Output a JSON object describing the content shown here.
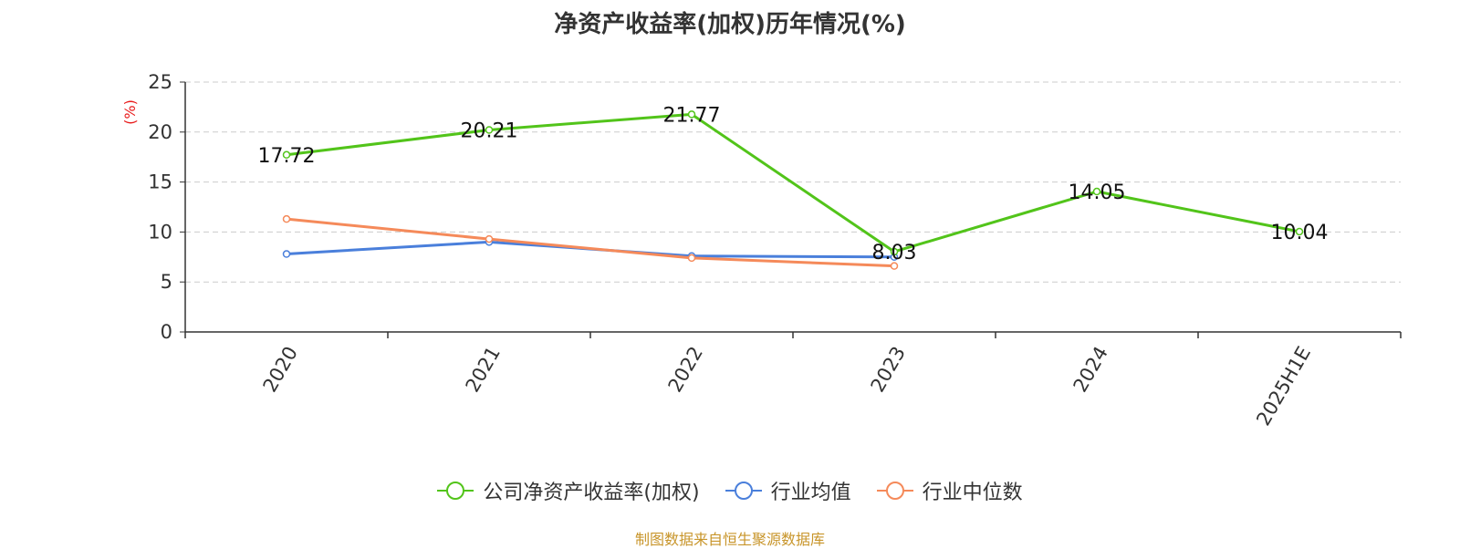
{
  "title": "净资产收益率(加权)历年情况(%)",
  "source": "制图数据来自恒生聚源数据库",
  "chart_data": {
    "type": "line",
    "title": "净资产收益率(加权)历年情况(%)",
    "ylabel": "(%)",
    "ylim": [
      0,
      25
    ],
    "yticks": [
      0,
      5,
      10,
      15,
      20,
      25
    ],
    "grid": true,
    "legend_position": "bottom-center",
    "categories": [
      "2020",
      "2021",
      "2022",
      "2023",
      "2024",
      "2025H1E"
    ],
    "series": [
      {
        "name": "公司净资产收益率(加权)",
        "color": "#52c41a",
        "values": [
          17.72,
          20.21,
          21.77,
          8.03,
          14.05,
          10.04
        ],
        "labels": [
          "17.72",
          "20.21",
          "21.77",
          "8.03",
          "14.05",
          "10.04"
        ]
      },
      {
        "name": "行业均值",
        "color": "#4a7fdb",
        "values": [
          7.8,
          9.0,
          7.6,
          7.5,
          null,
          null
        ]
      },
      {
        "name": "行业中位数",
        "color": "#f58a5a",
        "values": [
          11.3,
          9.3,
          7.4,
          6.6,
          null,
          null
        ]
      }
    ]
  }
}
